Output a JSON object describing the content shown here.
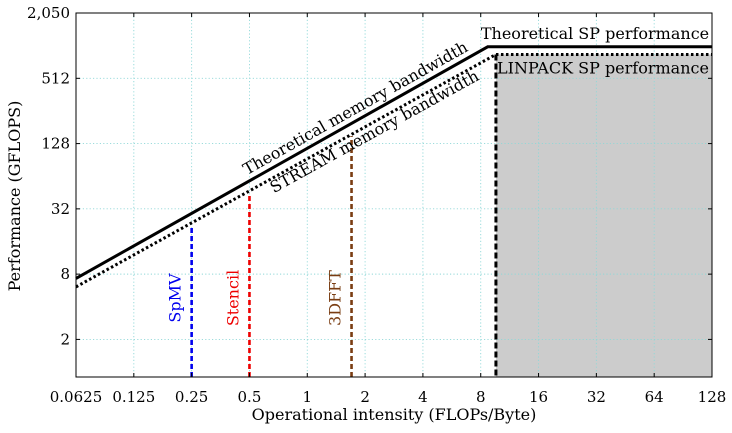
{
  "chart_data": {
    "type": "line",
    "title": "",
    "xlabel": "Operational intensity (FLOPs/Byte)",
    "ylabel": "Performance (GFLOPS)",
    "x_scale": "log2",
    "y_scale": "log2",
    "xlim": [
      0.0625,
      128
    ],
    "ylim": [
      0.9,
      2050
    ],
    "grid": true,
    "x_ticks": [
      {
        "value": 0.0625,
        "label": "0.0625"
      },
      {
        "value": 0.125,
        "label": "0.125"
      },
      {
        "value": 0.25,
        "label": "0.25"
      },
      {
        "value": 0.5,
        "label": "0.5"
      },
      {
        "value": 1,
        "label": "1"
      },
      {
        "value": 2,
        "label": "2"
      },
      {
        "value": 4,
        "label": "4"
      },
      {
        "value": 8,
        "label": "8"
      },
      {
        "value": 16,
        "label": "16"
      },
      {
        "value": 32,
        "label": "32"
      },
      {
        "value": 64,
        "label": "64"
      },
      {
        "value": 128,
        "label": "128"
      }
    ],
    "y_ticks": [
      {
        "value": 2,
        "label": "2"
      },
      {
        "value": 8,
        "label": "8"
      },
      {
        "value": 32,
        "label": "32"
      },
      {
        "value": 128,
        "label": "128"
      },
      {
        "value": 512,
        "label": "512"
      },
      {
        "value": 2050,
        "label": "2,050"
      }
    ],
    "rooflines": [
      {
        "name": "Theoretical memory bandwidth",
        "style": "solid",
        "color": "#000000",
        "points": [
          [
            0.0625,
            7.3
          ],
          [
            8.7,
            1000
          ],
          [
            128,
            1000
          ]
        ]
      },
      {
        "name": "STREAM memory bandwidth",
        "style": "dotted",
        "color": "#000000",
        "points": [
          [
            0.0625,
            6.1
          ],
          [
            9.6,
            850
          ],
          [
            128,
            850
          ]
        ]
      }
    ],
    "shaded_region": {
      "x_start": 9.6,
      "x_end": 128,
      "y_top": 850,
      "color": "#cccccc"
    },
    "kernels": [
      {
        "name": "SpMV",
        "x": 0.25,
        "y": 22,
        "color": "#0000ee"
      },
      {
        "name": "Stencil",
        "x": 0.5,
        "y": 44,
        "color": "#ee0000"
      },
      {
        "name": "3DFFT",
        "x": 1.7,
        "y": 150,
        "color": "#7a3d12"
      }
    ],
    "annotations": [
      {
        "text": "Theoretical SP performance",
        "target": "theoretical-compute",
        "color": "#000000"
      },
      {
        "text": "LINPACK SP performance",
        "target": "linpack-compute",
        "color": "#000000"
      },
      {
        "text": "Theoretical memory bandwidth",
        "target": "theoretical-bandwidth",
        "color": "#000000"
      },
      {
        "text": "STREAM memory bandwidth",
        "target": "stream-bandwidth",
        "color": "#000000"
      }
    ]
  }
}
